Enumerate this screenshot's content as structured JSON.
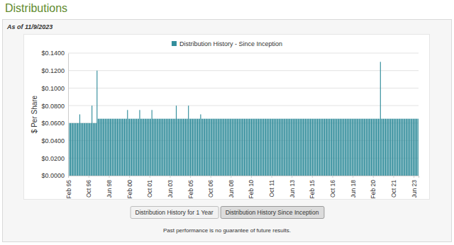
{
  "chart_data": {
    "type": "bar",
    "title": "Distributions",
    "subtitle": "As of 11/9/2023",
    "y_label": "$ Per Share",
    "grid": true,
    "ylim": [
      0,
      0.14
    ],
    "yticks": [
      {
        "value": 0,
        "label": "$0.0000"
      },
      {
        "value": 0.02,
        "label": "$0.0200"
      },
      {
        "value": 0.04,
        "label": "$0.0400"
      },
      {
        "value": 0.06,
        "label": "$0.0600"
      },
      {
        "value": 0.08,
        "label": "$0.0800"
      },
      {
        "value": 0.1,
        "label": "$0.1000"
      },
      {
        "value": 0.12,
        "label": "$0.1200"
      },
      {
        "value": 0.14,
        "label": "$0.1400"
      }
    ],
    "categories": [
      "Feb 95",
      null,
      null,
      null,
      null,
      null,
      null,
      null,
      null,
      null,
      null,
      null,
      null,
      null,
      null,
      null,
      null,
      null,
      null,
      null,
      "Oct 96",
      null,
      null,
      null,
      null,
      null,
      null,
      null,
      null,
      null,
      null,
      null,
      null,
      null,
      null,
      null,
      null,
      null,
      null,
      null,
      "Jun 98",
      null,
      null,
      null,
      null,
      null,
      null,
      null,
      null,
      null,
      null,
      null,
      null,
      null,
      null,
      null,
      null,
      null,
      null,
      null,
      "Feb 00",
      null,
      null,
      null,
      null,
      null,
      null,
      null,
      null,
      null,
      null,
      null,
      null,
      null,
      null,
      null,
      null,
      null,
      null,
      null,
      "Oct 01",
      null,
      null,
      null,
      null,
      null,
      null,
      null,
      null,
      null,
      null,
      null,
      null,
      null,
      null,
      null,
      null,
      null,
      null,
      null,
      "Jun 03",
      null,
      null,
      null,
      null,
      null,
      null,
      null,
      null,
      null,
      null,
      null,
      null,
      null,
      null,
      null,
      null,
      null,
      null,
      null,
      "Feb 05",
      null,
      null,
      null,
      null,
      null,
      null,
      null,
      null,
      null,
      null,
      null,
      null,
      null,
      null,
      null,
      null,
      null,
      null,
      null,
      "Oct 06",
      null,
      null,
      null,
      null,
      null,
      null,
      null,
      null,
      null,
      null,
      null,
      null,
      null,
      null,
      null,
      null,
      null,
      null,
      null,
      "Jun 08",
      null,
      null,
      null,
      null,
      null,
      null,
      null,
      null,
      null,
      null,
      null,
      null,
      null,
      null,
      null,
      null,
      null,
      null,
      null,
      "Feb 10",
      null,
      null,
      null,
      null,
      null,
      null,
      null,
      null,
      null,
      null,
      null,
      null,
      null,
      null,
      null,
      null,
      null,
      null,
      null,
      "Oct 11",
      null,
      null,
      null,
      null,
      null,
      null,
      null,
      null,
      null,
      null,
      null,
      null,
      null,
      null,
      null,
      null,
      null,
      null,
      null,
      "Jun 13",
      null,
      null,
      null,
      null,
      null,
      null,
      null,
      null,
      null,
      null,
      null,
      null,
      null,
      null,
      null,
      null,
      null,
      null,
      null,
      "Feb 15",
      null,
      null,
      null,
      null,
      null,
      null,
      null,
      null,
      null,
      null,
      null,
      null,
      null,
      null,
      null,
      null,
      null,
      null,
      null,
      "Oct 16",
      null,
      null,
      null,
      null,
      null,
      null,
      null,
      null,
      null,
      null,
      null,
      null,
      null,
      null,
      null,
      null,
      null,
      null,
      null,
      "Jun 18",
      null,
      null,
      null,
      null,
      null,
      null,
      null,
      null,
      null,
      null,
      null,
      null,
      null,
      null,
      null,
      null,
      null,
      null,
      null,
      "Feb 20",
      null,
      null,
      null,
      null,
      null,
      null,
      null,
      null,
      null,
      null,
      null,
      null,
      null,
      null,
      null,
      null,
      null,
      null,
      null,
      "Oct 21",
      null,
      null,
      null,
      null,
      null,
      null,
      null,
      null,
      null,
      null,
      null,
      null,
      null,
      null,
      null,
      null,
      null,
      null,
      null,
      "Jun 23",
      null,
      null,
      null,
      null
    ],
    "series": [
      {
        "name": "Distribution History - Since Inception",
        "color": "#348e9c",
        "values": [
          0.06,
          0.06,
          0.06,
          0.06,
          0.06,
          0.06,
          0.06,
          0.06,
          0.06,
          0.06,
          0.06,
          0.07,
          0.06,
          0.06,
          0.06,
          0.06,
          0.06,
          0.06,
          0.06,
          0.06,
          0.06,
          0.06,
          0.06,
          0.08,
          0.06,
          0.06,
          0.06,
          0.06,
          0.12,
          0.065,
          0.065,
          0.065,
          0.065,
          0.065,
          0.065,
          0.065,
          0.065,
          0.065,
          0.065,
          0.065,
          0.065,
          0.065,
          0.065,
          0.065,
          0.065,
          0.065,
          0.065,
          0.065,
          0.065,
          0.065,
          0.065,
          0.065,
          0.065,
          0.065,
          0.065,
          0.065,
          0.065,
          0.065,
          0.075,
          0.065,
          0.065,
          0.065,
          0.065,
          0.065,
          0.065,
          0.065,
          0.065,
          0.065,
          0.065,
          0.065,
          0.075,
          0.065,
          0.065,
          0.065,
          0.065,
          0.065,
          0.065,
          0.065,
          0.065,
          0.065,
          0.065,
          0.065,
          0.075,
          0.065,
          0.065,
          0.065,
          0.065,
          0.065,
          0.065,
          0.065,
          0.065,
          0.065,
          0.065,
          0.065,
          0.065,
          0.065,
          0.065,
          0.065,
          0.065,
          0.065,
          0.065,
          0.065,
          0.065,
          0.065,
          0.065,
          0.065,
          0.08,
          0.065,
          0.065,
          0.065,
          0.065,
          0.065,
          0.065,
          0.065,
          0.065,
          0.065,
          0.065,
          0.065,
          0.08,
          0.065,
          0.065,
          0.065,
          0.065,
          0.065,
          0.065,
          0.065,
          0.065,
          0.065,
          0.065,
          0.065,
          0.07,
          0.065,
          0.065,
          0.065,
          0.065,
          0.065,
          0.065,
          0.065,
          0.065,
          0.065,
          0.065,
          0.065,
          0.065,
          0.065,
          0.065,
          0.065,
          0.065,
          0.065,
          0.065,
          0.065,
          0.065,
          0.065,
          0.065,
          0.065,
          0.065,
          0.065,
          0.065,
          0.065,
          0.065,
          0.065,
          0.065,
          0.065,
          0.065,
          0.065,
          0.065,
          0.065,
          0.065,
          0.065,
          0.065,
          0.065,
          0.065,
          0.065,
          0.065,
          0.065,
          0.065,
          0.065,
          0.065,
          0.065,
          0.065,
          0.065,
          0.065,
          0.065,
          0.065,
          0.065,
          0.065,
          0.065,
          0.065,
          0.065,
          0.065,
          0.065,
          0.065,
          0.065,
          0.065,
          0.065,
          0.065,
          0.065,
          0.065,
          0.065,
          0.065,
          0.065,
          0.065,
          0.065,
          0.065,
          0.065,
          0.065,
          0.065,
          0.065,
          0.065,
          0.065,
          0.065,
          0.065,
          0.065,
          0.065,
          0.065,
          0.065,
          0.065,
          0.065,
          0.065,
          0.065,
          0.065,
          0.065,
          0.065,
          0.065,
          0.065,
          0.065,
          0.065,
          0.065,
          0.065,
          0.065,
          0.065,
          0.065,
          0.065,
          0.065,
          0.065,
          0.065,
          0.065,
          0.065,
          0.065,
          0.065,
          0.065,
          0.065,
          0.065,
          0.065,
          0.065,
          0.065,
          0.065,
          0.065,
          0.065,
          0.065,
          0.065,
          0.065,
          0.065,
          0.065,
          0.065,
          0.065,
          0.065,
          0.065,
          0.065,
          0.065,
          0.065,
          0.065,
          0.065,
          0.065,
          0.065,
          0.065,
          0.065,
          0.065,
          0.065,
          0.065,
          0.065,
          0.065,
          0.065,
          0.065,
          0.065,
          0.065,
          0.065,
          0.065,
          0.065,
          0.065,
          0.065,
          0.065,
          0.065,
          0.065,
          0.065,
          0.065,
          0.065,
          0.065,
          0.065,
          0.065,
          0.065,
          0.065,
          0.065,
          0.065,
          0.065,
          0.065,
          0.065,
          0.065,
          0.065,
          0.065,
          0.065,
          0.065,
          0.065,
          0.065,
          0.065,
          0.065,
          0.065,
          0.065,
          0.13,
          0.065,
          0.065,
          0.065,
          0.065,
          0.065,
          0.065,
          0.065,
          0.065,
          0.065,
          0.065,
          0.065,
          0.065,
          0.065,
          0.065,
          0.065,
          0.065,
          0.065,
          0.065,
          0.065,
          0.065,
          0.065,
          0.065,
          0.065,
          0.065,
          0.065,
          0.065,
          0.065,
          0.065,
          0.065,
          0.065,
          0.065,
          0.065,
          0.065,
          0.065,
          0.065,
          0.065,
          0.065
        ]
      }
    ]
  },
  "page": {
    "buttons": [
      "Distribution History for 1 Year",
      "Distribution History Since Inception"
    ],
    "footnote": "Past performance is no guarantee of future results."
  }
}
